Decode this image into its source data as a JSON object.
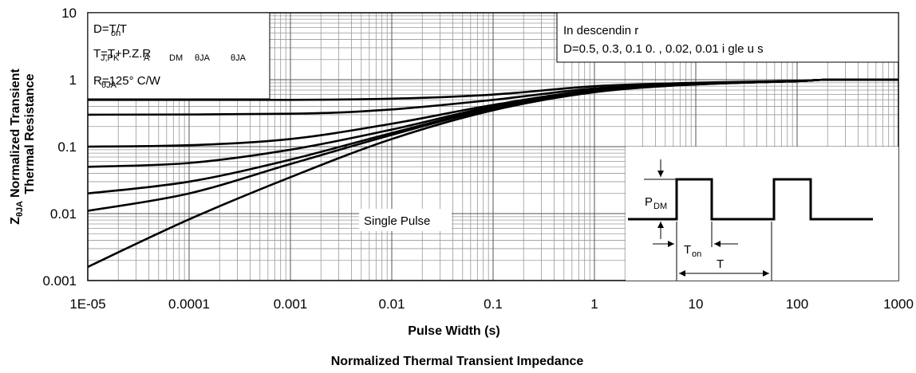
{
  "chart_data": {
    "type": "line",
    "title": "Normalized Thermal Transient Impedance",
    "xlabel": "Pulse Width (s)",
    "ylabel_line1": "Normalized Transient",
    "ylabel_line2": "Thermal Resistance",
    "ylabel_symbol": "Z",
    "ylabel_symbol_sub": "θJA",
    "x_scale": "log",
    "y_scale": "log",
    "xlim": [
      1e-05,
      1000
    ],
    "ylim": [
      0.001,
      10
    ],
    "x_ticks": [
      "1E-05",
      "0.0001",
      "0.001",
      "0.01",
      "0.1",
      "1",
      "10",
      "100",
      "1000"
    ],
    "y_ticks": [
      "10",
      "1",
      "0.1",
      "0.01",
      "0.001"
    ],
    "grid": true,
    "annotations": {
      "formula_1": "D=T/T",
      "formula_1_sub": "on",
      "formula_2": "T=T+P.Z.R",
      "formula_2_subs": [
        "J,PK",
        "A",
        "DM",
        "θJA",
        "θJA"
      ],
      "rthja": "R=125°  C/W",
      "rthja_sub": "θJA",
      "legend_line1": "In descendin     r",
      "legend_line2": "D=0.5, 0.3, 0.1  0.      , 0.02, 0.01    i  gle   u s",
      "single_pulse_label": "Single Pulse",
      "inset_pdm": "P",
      "inset_pdm_sub": "DM",
      "inset_ton": "T",
      "inset_ton_sub": "on",
      "inset_t": "T"
    },
    "series": [
      {
        "duty": 0.5,
        "x": [
          1e-05,
          0.001,
          0.01,
          0.1,
          1,
          10,
          100,
          200,
          1000
        ],
        "y": [
          0.5,
          0.5,
          0.52,
          0.6,
          0.8,
          0.9,
          0.96,
          1.0,
          1.0
        ]
      },
      {
        "duty": 0.3,
        "x": [
          1e-05,
          0.001,
          0.01,
          0.1,
          1,
          10,
          100,
          200,
          1000
        ],
        "y": [
          0.3,
          0.31,
          0.36,
          0.5,
          0.74,
          0.88,
          0.96,
          1.0,
          1.0
        ]
      },
      {
        "duty": 0.1,
        "x": [
          1e-05,
          0.0001,
          0.001,
          0.01,
          0.1,
          1,
          10,
          100,
          200,
          1000
        ],
        "y": [
          0.1,
          0.105,
          0.13,
          0.22,
          0.42,
          0.7,
          0.86,
          0.95,
          1.0,
          1.0
        ]
      },
      {
        "duty": 0.05,
        "x": [
          1e-05,
          0.0001,
          0.001,
          0.01,
          0.1,
          1,
          10,
          100,
          200,
          1000
        ],
        "y": [
          0.05,
          0.057,
          0.09,
          0.18,
          0.4,
          0.68,
          0.86,
          0.95,
          1.0,
          1.0
        ]
      },
      {
        "duty": 0.02,
        "x": [
          1e-05,
          0.0001,
          0.001,
          0.01,
          0.1,
          1,
          10,
          100,
          200,
          1000
        ],
        "y": [
          0.02,
          0.03,
          0.064,
          0.16,
          0.38,
          0.68,
          0.86,
          0.95,
          1.0,
          1.0
        ]
      },
      {
        "duty": 0.01,
        "x": [
          1e-05,
          0.0001,
          0.001,
          0.01,
          0.1,
          1,
          10,
          100,
          200,
          1000
        ],
        "y": [
          0.011,
          0.02,
          0.055,
          0.15,
          0.37,
          0.67,
          0.85,
          0.95,
          1.0,
          1.0
        ]
      },
      {
        "duty": 0,
        "x": [
          1e-05,
          0.0001,
          0.001,
          0.01,
          0.1,
          1,
          10,
          100,
          200,
          1000
        ],
        "y": [
          0.0016,
          0.0082,
          0.035,
          0.13,
          0.35,
          0.65,
          0.85,
          0.95,
          1.0,
          1.0
        ]
      }
    ]
  }
}
